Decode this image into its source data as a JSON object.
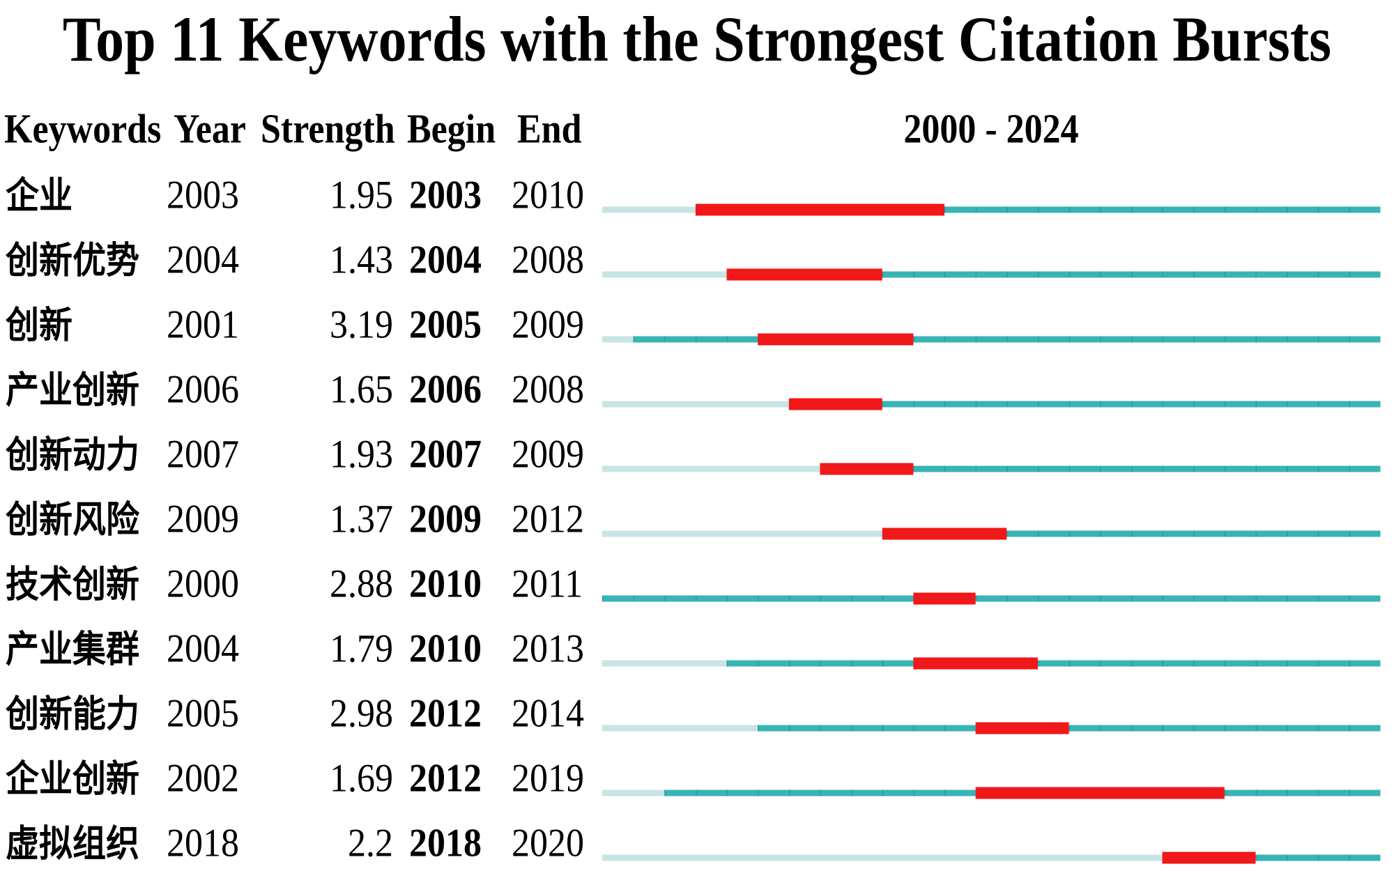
{
  "chart_data": {
    "type": "table",
    "title": "Top 11 Keywords with the Strongest Citation Bursts",
    "columns": [
      "Keywords",
      "Year",
      "Strength",
      "Begin",
      "End"
    ],
    "range_label": "2000 - 2024",
    "range": [
      2000,
      2024
    ],
    "rows": [
      {
        "keyword": "企业",
        "year": 2003,
        "strength": "1.95",
        "begin": 2003,
        "end": 2010
      },
      {
        "keyword": "创新优势",
        "year": 2004,
        "strength": "1.43",
        "begin": 2004,
        "end": 2008
      },
      {
        "keyword": "创新",
        "year": 2001,
        "strength": "3.19",
        "begin": 2005,
        "end": 2009
      },
      {
        "keyword": "产业创新",
        "year": 2006,
        "strength": "1.65",
        "begin": 2006,
        "end": 2008
      },
      {
        "keyword": "创新动力",
        "year": 2007,
        "strength": "1.93",
        "begin": 2007,
        "end": 2009
      },
      {
        "keyword": "创新风险",
        "year": 2009,
        "strength": "1.37",
        "begin": 2009,
        "end": 2012
      },
      {
        "keyword": "技术创新",
        "year": 2000,
        "strength": "2.88",
        "begin": 2010,
        "end": 2011
      },
      {
        "keyword": "产业集群",
        "year": 2004,
        "strength": "1.79",
        "begin": 2010,
        "end": 2013
      },
      {
        "keyword": "创新能力",
        "year": 2005,
        "strength": "2.98",
        "begin": 2012,
        "end": 2014
      },
      {
        "keyword": "企业创新",
        "year": 2002,
        "strength": "1.69",
        "begin": 2012,
        "end": 2019
      },
      {
        "keyword": "虚拟组织",
        "year": 2018,
        "strength": "2.2",
        "begin": 2018,
        "end": 2020
      }
    ],
    "colors": {
      "burst": "#f01818",
      "active": "#39b4b6",
      "inactive": "#c8e4e6",
      "tick": "#2a9ea0"
    }
  }
}
